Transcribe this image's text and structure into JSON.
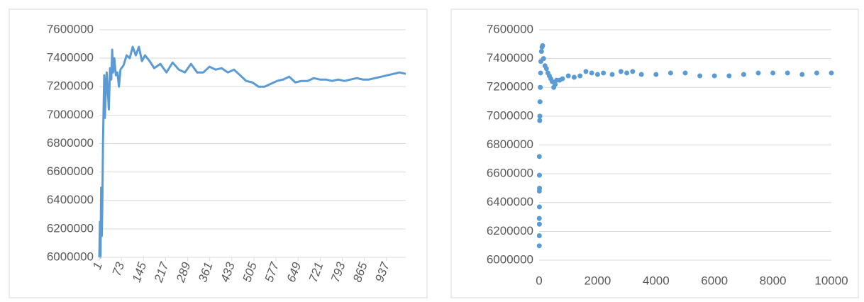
{
  "chart_data": [
    {
      "type": "line",
      "color": "#5b9bd5",
      "grid": true,
      "x": [
        1,
        3,
        5,
        7,
        9,
        11,
        13,
        15,
        17,
        19,
        22,
        25,
        28,
        32,
        36,
        40,
        43,
        46,
        50,
        55,
        60,
        65,
        70,
        80,
        90,
        100,
        110,
        120,
        130,
        140,
        150,
        165,
        180,
        200,
        220,
        240,
        260,
        280,
        300,
        320,
        340,
        360,
        380,
        400,
        420,
        440,
        460,
        480,
        500,
        520,
        540,
        560,
        580,
        600,
        620,
        640,
        660,
        680,
        700,
        720,
        740,
        760,
        780,
        800,
        820,
        840,
        860,
        880,
        900,
        920,
        940,
        960,
        980,
        1000
      ],
      "series": [
        {
          "values": [
            6000000,
            6250000,
            6000000,
            6490000,
            6150000,
            6400000,
            6800000,
            7050000,
            7280000,
            6980000,
            7150000,
            7300000,
            7200000,
            7040000,
            7330000,
            7250000,
            7460000,
            7300000,
            7400000,
            7280000,
            7300000,
            7200000,
            7320000,
            7350000,
            7420000,
            7400000,
            7480000,
            7420000,
            7480000,
            7380000,
            7420000,
            7380000,
            7330000,
            7360000,
            7300000,
            7370000,
            7320000,
            7300000,
            7360000,
            7300000,
            7300000,
            7340000,
            7320000,
            7330000,
            7300000,
            7320000,
            7280000,
            7240000,
            7230000,
            7200000,
            7200000,
            7220000,
            7240000,
            7250000,
            7270000,
            7230000,
            7240000,
            7240000,
            7260000,
            7250000,
            7250000,
            7240000,
            7250000,
            7240000,
            7250000,
            7260000,
            7250000,
            7250000,
            7260000,
            7270000,
            7280000,
            7290000,
            7300000,
            7290000
          ]
        }
      ],
      "xlim": [
        1,
        1000
      ],
      "xticks": [
        1,
        73,
        145,
        217,
        289,
        361,
        433,
        505,
        577,
        649,
        721,
        793,
        865,
        937
      ],
      "ylim": [
        6000000,
        7600000
      ],
      "yticks": [
        6000000,
        6200000,
        6400000,
        6600000,
        6800000,
        7000000,
        7200000,
        7400000,
        7600000
      ]
    },
    {
      "type": "scatter",
      "color": "#5b9bd5",
      "grid": true,
      "x": [
        5,
        8,
        10,
        6,
        12,
        9,
        14,
        11,
        7,
        20,
        25,
        30,
        40,
        50,
        60,
        80,
        100,
        120,
        150,
        200,
        250,
        300,
        350,
        400,
        450,
        500,
        550,
        600,
        700,
        800,
        1000,
        1200,
        1400,
        1600,
        1800,
        2000,
        2200,
        2500,
        2800,
        3000,
        3200,
        3500,
        4000,
        4500,
        5000,
        5500,
        6000,
        6500,
        7000,
        7500,
        8000,
        8500,
        9000,
        9500,
        10000
      ],
      "series": [
        {
          "values": [
            6100000,
            6170000,
            6250000,
            6290000,
            6370000,
            6480000,
            6500000,
            6590000,
            6720000,
            6970000,
            7000000,
            7100000,
            7200000,
            7300000,
            7380000,
            7450000,
            7480000,
            7490000,
            7400000,
            7350000,
            7330000,
            7300000,
            7280000,
            7260000,
            7240000,
            7200000,
            7220000,
            7250000,
            7250000,
            7260000,
            7280000,
            7270000,
            7280000,
            7310000,
            7300000,
            7290000,
            7300000,
            7290000,
            7310000,
            7300000,
            7310000,
            7290000,
            7290000,
            7300000,
            7300000,
            7280000,
            7280000,
            7280000,
            7290000,
            7300000,
            7300000,
            7300000,
            7290000,
            7300000,
            7300000
          ]
        }
      ],
      "xlim": [
        0,
        10000
      ],
      "xticks": [
        0,
        2000,
        4000,
        6000,
        8000,
        10000
      ],
      "ylim": [
        6000000,
        7600000
      ],
      "yticks": [
        6000000,
        6200000,
        6400000,
        6600000,
        6800000,
        7000000,
        7200000,
        7400000,
        7600000
      ]
    }
  ]
}
